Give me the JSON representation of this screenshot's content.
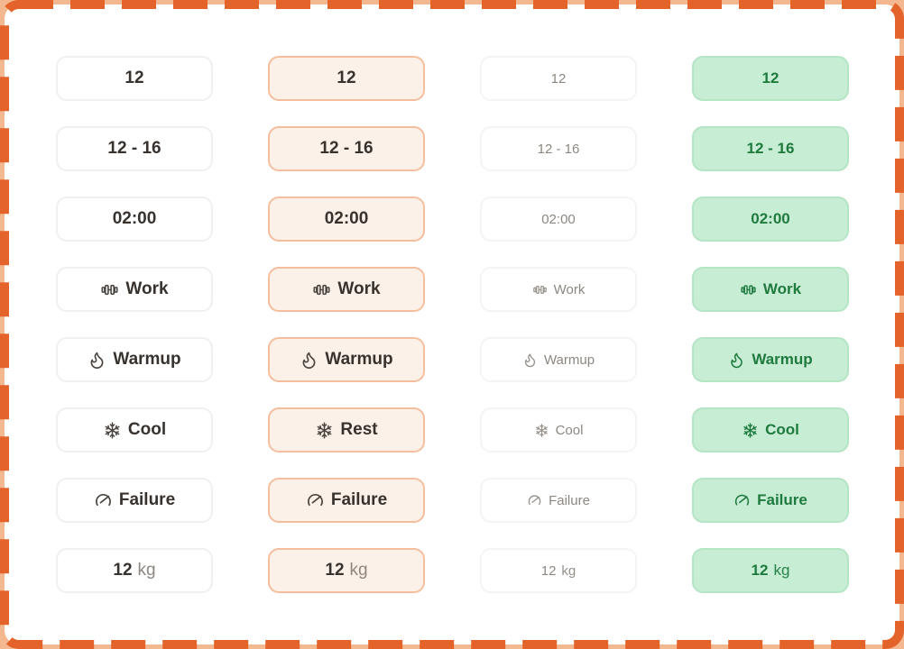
{
  "frame": {
    "border_color": "#E4632A",
    "outer_corner_color": "#F4B891",
    "inner_background": "#FFFFFF"
  },
  "palette": {
    "default_bg": "#FFFFFF",
    "default_border": "#F1F0EF",
    "default_text": "#37322E",
    "active_bg": "#FCF1E8",
    "active_border": "#F5BE9D",
    "active_text": "#37322E",
    "muted_bg": "#FFFFFF",
    "muted_border": "#F5F4F3",
    "muted_text": "#8D8781",
    "success_bg": "#C7EDD4",
    "success_border": "#B4E5C4",
    "success_text": "#1F7A3E",
    "unit_muted_text": "#8D8781"
  },
  "columns": [
    {
      "variant": "default",
      "chips": [
        {
          "label": "12"
        },
        {
          "label": "12 - 16"
        },
        {
          "label": "02:00"
        },
        {
          "icon": "dumbbell-icon",
          "label": "Work"
        },
        {
          "icon": "flame-icon",
          "label": "Warmup"
        },
        {
          "icon": "snowflake-icon",
          "label": "Cool"
        },
        {
          "icon": "gauge-icon",
          "label": "Failure"
        },
        {
          "value": "12",
          "unit": "kg"
        }
      ]
    },
    {
      "variant": "active",
      "chips": [
        {
          "label": "12"
        },
        {
          "label": "12 - 16"
        },
        {
          "label": "02:00"
        },
        {
          "icon": "dumbbell-icon",
          "label": "Work"
        },
        {
          "icon": "flame-icon",
          "label": "Warmup"
        },
        {
          "icon": "snowflake-icon",
          "label": "Rest"
        },
        {
          "icon": "gauge-icon",
          "label": "Failure"
        },
        {
          "value": "12",
          "unit": "kg"
        }
      ]
    },
    {
      "variant": "muted",
      "chips": [
        {
          "label": "12"
        },
        {
          "label": "12 - 16"
        },
        {
          "label": "02:00"
        },
        {
          "icon": "dumbbell-icon",
          "label": "Work"
        },
        {
          "icon": "flame-icon",
          "label": "Warmup"
        },
        {
          "icon": "snowflake-icon",
          "label": "Cool"
        },
        {
          "icon": "gauge-icon",
          "label": "Failure"
        },
        {
          "value": "12",
          "unit": "kg"
        }
      ]
    },
    {
      "variant": "success",
      "chips": [
        {
          "label": "12"
        },
        {
          "label": "12 - 16"
        },
        {
          "label": "02:00"
        },
        {
          "icon": "dumbbell-icon",
          "label": "Work"
        },
        {
          "icon": "flame-icon",
          "label": "Warmup"
        },
        {
          "icon": "snowflake-icon",
          "label": "Cool"
        },
        {
          "icon": "gauge-icon",
          "label": "Failure"
        },
        {
          "value": "12",
          "unit": "kg"
        }
      ]
    }
  ]
}
